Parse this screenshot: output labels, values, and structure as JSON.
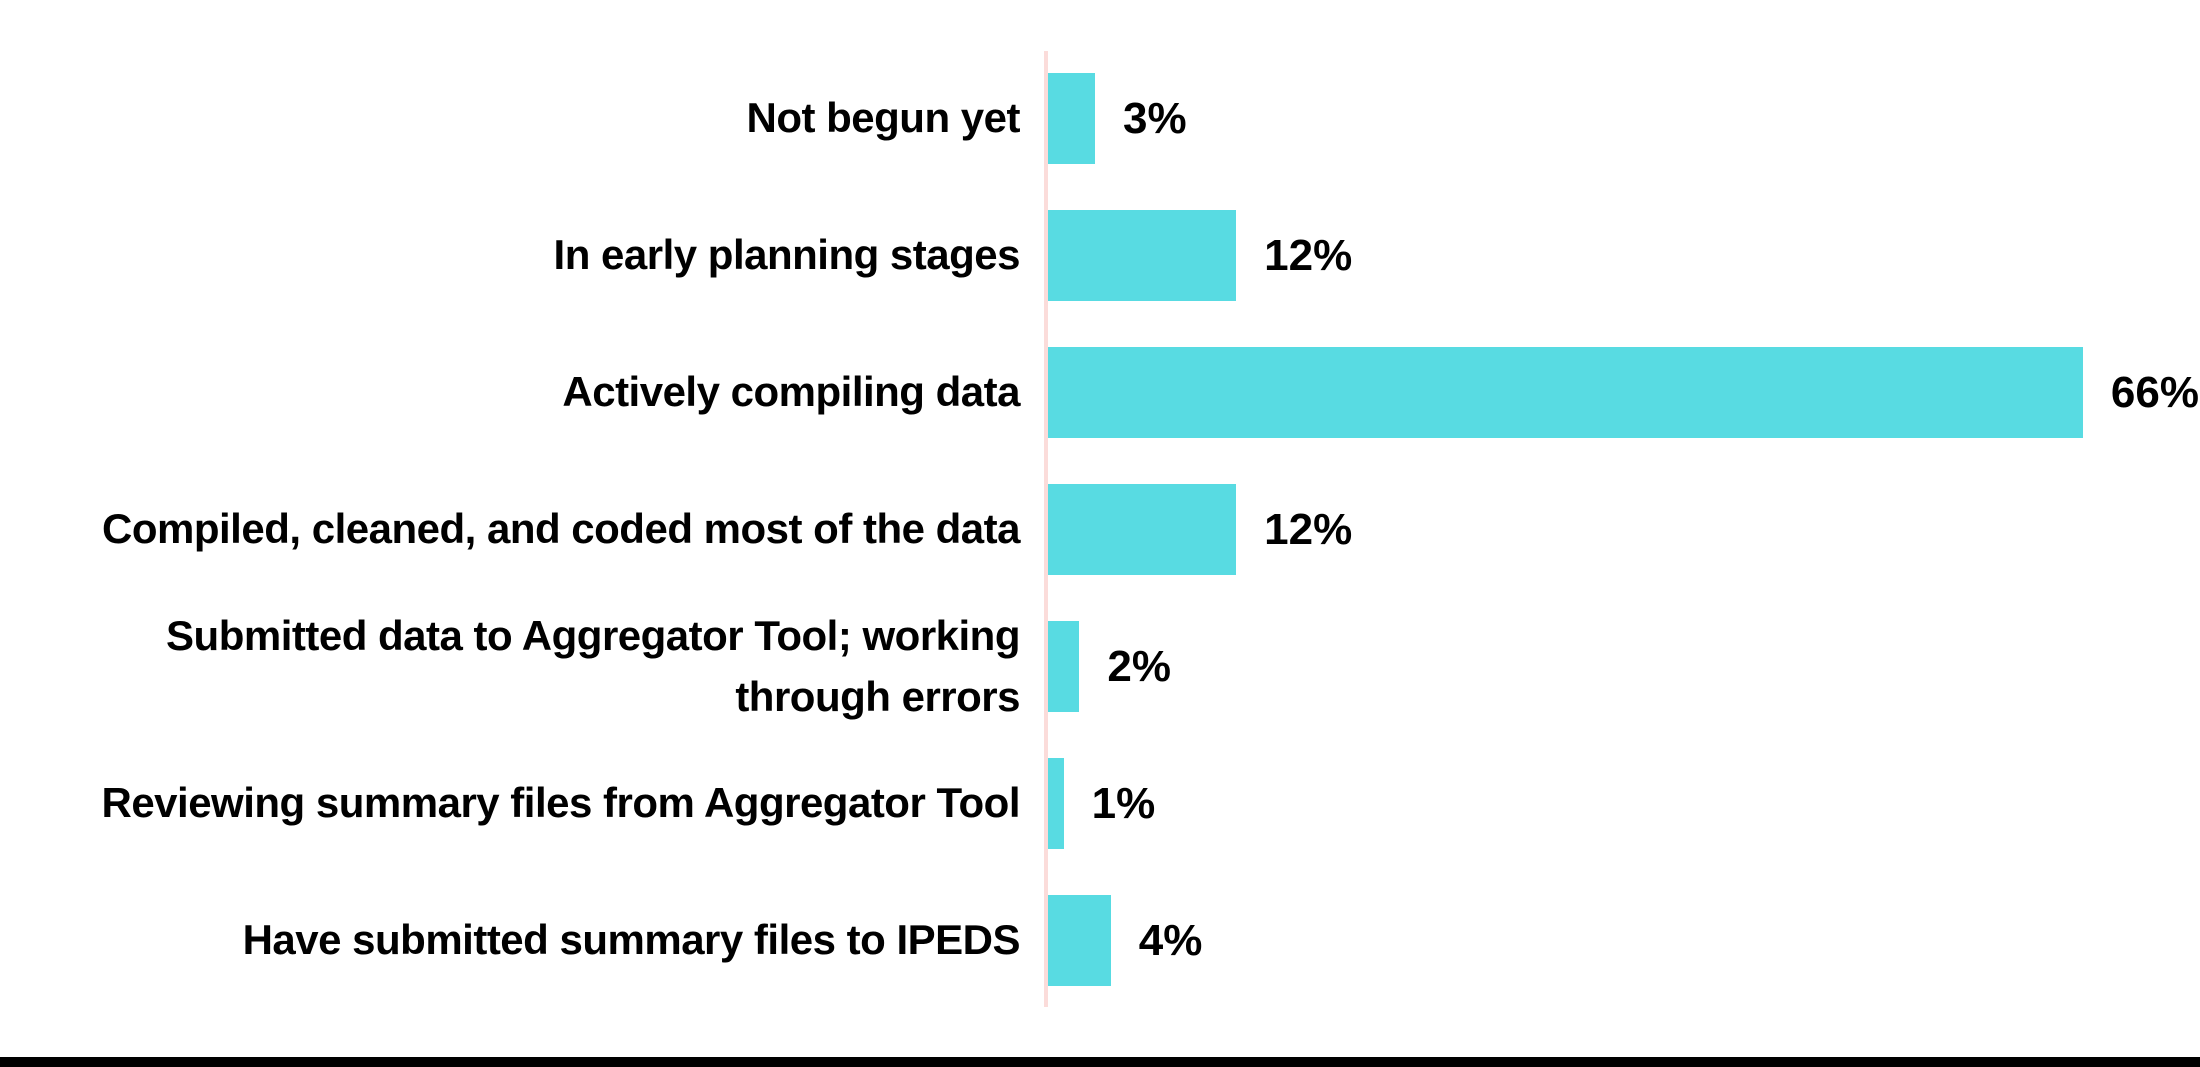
{
  "chart_data": {
    "type": "bar",
    "orientation": "horizontal",
    "title": "",
    "xlabel": "",
    "ylabel": "",
    "xlim": [
      0,
      66
    ],
    "grid": false,
    "legend": false,
    "bar_color": "#58dbe2",
    "axis_line_color": "#fbdcda",
    "footer_bar_color": "#000000",
    "categories": [
      "Not begun yet",
      "In early planning stages",
      "Actively compiling data",
      "Compiled, cleaned, and coded most of the data",
      "Submitted data to Aggregator Tool; working\nthrough errors",
      "Reviewing summary files from Aggregator Tool",
      "Have submitted summary files to IPEDS"
    ],
    "values": [
      3,
      12,
      66,
      12,
      2,
      1,
      4
    ],
    "value_labels": [
      "3%",
      "12%",
      "66%",
      "12%",
      "2%",
      "1%",
      "4%"
    ]
  }
}
